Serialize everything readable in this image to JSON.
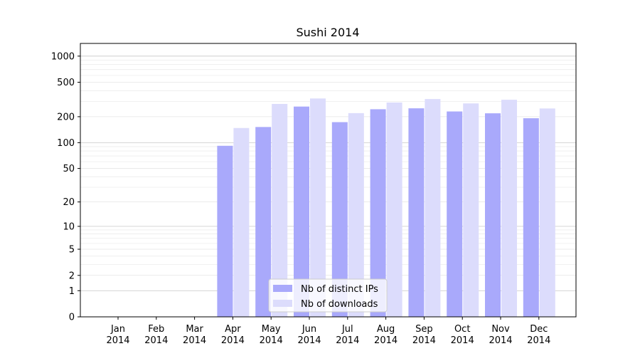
{
  "chart_data": {
    "type": "bar",
    "title": "Sushi 2014",
    "xlabel": "",
    "ylabel": "",
    "yscale": "symlog",
    "ylim": [
      0,
      1400
    ],
    "y_ticks": [
      0,
      1,
      2,
      5,
      10,
      20,
      50,
      100,
      200,
      500,
      1000
    ],
    "y_tick_labels": [
      "0",
      "1",
      "2",
      "5",
      "10",
      "20",
      "50",
      "100",
      "200",
      "500",
      "1000"
    ],
    "categories": [
      [
        "Jan",
        "2014"
      ],
      [
        "Feb",
        "2014"
      ],
      [
        "Mar",
        "2014"
      ],
      [
        "Apr",
        "2014"
      ],
      [
        "May",
        "2014"
      ],
      [
        "Jun",
        "2014"
      ],
      [
        "Jul",
        "2014"
      ],
      [
        "Aug",
        "2014"
      ],
      [
        "Sep",
        "2014"
      ],
      [
        "Oct",
        "2014"
      ],
      [
        "Nov",
        "2014"
      ],
      [
        "Dec",
        "2014"
      ]
    ],
    "series": [
      {
        "name": "Nb of distinct IPs",
        "color": "#a9a9fb",
        "values": [
          0,
          0,
          0,
          92,
          152,
          262,
          173,
          244,
          250,
          230,
          219,
          192
        ]
      },
      {
        "name": "Nb of downloads",
        "color": "#dcdcfc",
        "values": [
          0,
          0,
          0,
          148,
          281,
          325,
          220,
          292,
          320,
          285,
          314,
          249
        ]
      }
    ],
    "grid": true,
    "legend_position": "bottom-center"
  }
}
